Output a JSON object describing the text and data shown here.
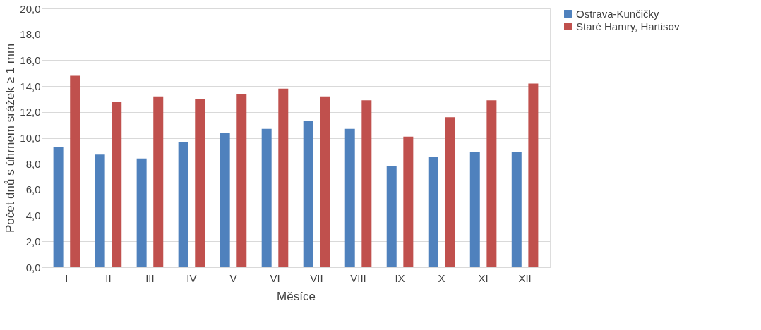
{
  "chart_data": {
    "type": "bar",
    "xlabel": "Měsíce",
    "ylabel": "Počet dnů s úhrnem srážek ≥ 1 mm",
    "categories": [
      "I",
      "II",
      "III",
      "IV",
      "V",
      "VI",
      "VII",
      "VIII",
      "IX",
      "X",
      "XI",
      "XII"
    ],
    "series": [
      {
        "name": "Ostrava-Kunčičky",
        "color": "#4f81bd",
        "values": [
          9.3,
          8.7,
          8.4,
          9.7,
          10.4,
          10.7,
          11.3,
          10.7,
          7.8,
          8.5,
          8.9,
          8.9
        ]
      },
      {
        "name": "Staré Hamry, Hartisov",
        "color": "#c0504d",
        "values": [
          14.8,
          12.8,
          13.2,
          13.0,
          13.4,
          13.8,
          13.2,
          12.9,
          10.1,
          11.6,
          12.9,
          14.2
        ]
      }
    ],
    "ylim": [
      0,
      20
    ],
    "yticks": [
      {
        "value": 0,
        "label": "0,0"
      },
      {
        "value": 2,
        "label": "2,0"
      },
      {
        "value": 4,
        "label": "4,0"
      },
      {
        "value": 6,
        "label": "6,0"
      },
      {
        "value": 8,
        "label": "8,0"
      },
      {
        "value": 10,
        "label": "10,0"
      },
      {
        "value": 12,
        "label": "12,0"
      },
      {
        "value": 14,
        "label": "14,0"
      },
      {
        "value": 16,
        "label": "16,0"
      },
      {
        "value": 18,
        "label": "18,0"
      },
      {
        "value": 20,
        "label": "20,0"
      }
    ],
    "grid": "y",
    "legend": "right"
  }
}
